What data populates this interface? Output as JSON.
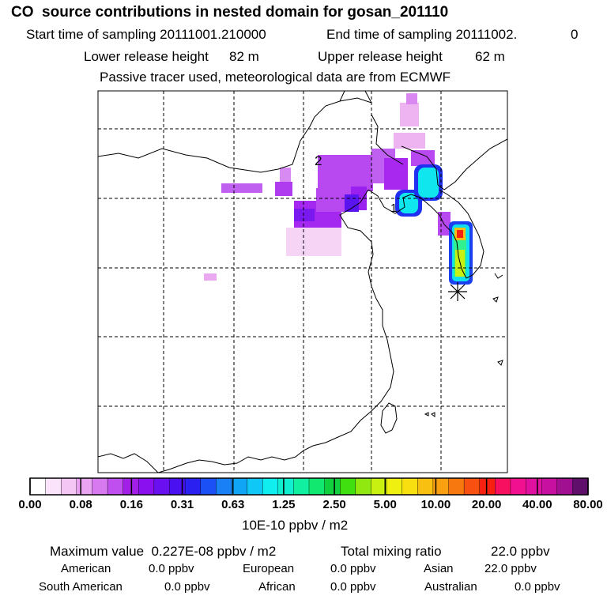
{
  "header": {
    "title": "CO  source contributions in nested domain for gosan_201110",
    "start_label": "Start time of sampling 20111001.210000",
    "end_label": "End time of sampling 20111002.",
    "end_suffix": "0",
    "lower_label": "Lower release height",
    "lower_value": "82 m",
    "upper_label": "Upper release height",
    "upper_value": "62 m",
    "tracer_line": "Passive tracer used, meteorological data are from ECMWF"
  },
  "map": {
    "region_labels": [
      "2",
      "1"
    ],
    "receptor_marker": "asterisk-receptor-site"
  },
  "colorbar": {
    "unit_label": "10E-10 ppbv / m2",
    "ticks": [
      "0.00",
      "0.08",
      "0.16",
      "0.31",
      "0.63",
      "1.25",
      "2.50",
      "5.00",
      "10.00",
      "20.00",
      "40.00",
      "80.00"
    ],
    "colors": [
      "#ffffff",
      "#fbe4fb",
      "#f4c6f4",
      "#eba4f2",
      "#d77af0",
      "#c04ff0",
      "#a21fe8",
      "#8a10f0",
      "#6a10f0",
      "#4a10f0",
      "#2a20f0",
      "#1a50f5",
      "#1a80f5",
      "#10a5f5",
      "#10c8f5",
      "#10eef0",
      "#10f0d0",
      "#10f0a0",
      "#10e870",
      "#10d040",
      "#40e010",
      "#90e810",
      "#c8f010",
      "#f0f010",
      "#f8e010",
      "#f8c010",
      "#f8a010",
      "#f87810",
      "#f85010",
      "#f82010",
      "#f81060",
      "#f01090",
      "#e010a0",
      "#c810a0",
      "#a01090",
      "#60106a"
    ]
  },
  "stats": {
    "max_label": "Maximum value  0.227E-08 ppbv / m2",
    "total_label": "Total mixing ratio",
    "total_value": "22.0 ppbv",
    "american_label": "American",
    "american_value": "0.0 ppbv",
    "european_label": "European",
    "european_value": "0.0 ppbv",
    "asian_label": "Asian",
    "asian_value": "22.0 ppbv",
    "south_american_label": "South American",
    "south_american_value": "0.0 ppbv",
    "african_label": "African",
    "african_value": "0.0 ppbv",
    "australian_label": "Australian",
    "australian_value": "0.0 ppbv"
  }
}
